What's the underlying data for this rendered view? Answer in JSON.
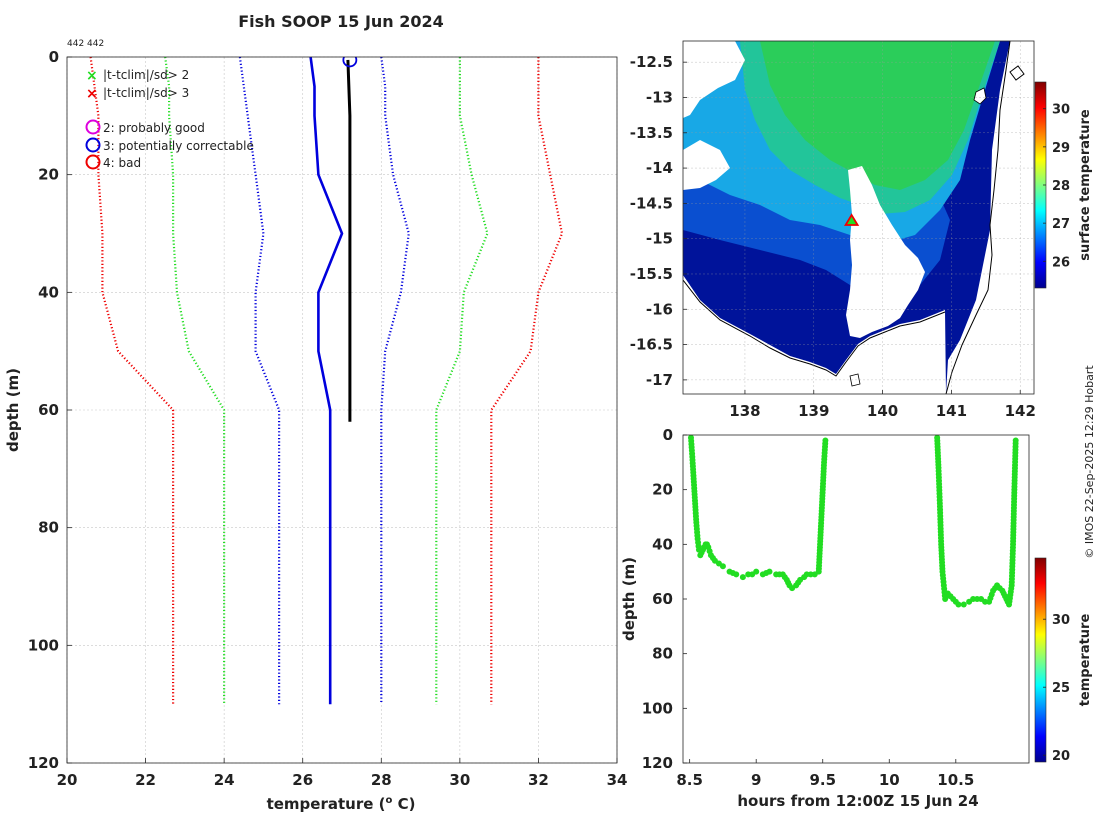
{
  "title": "Fish SOOP 15 Jun 2024",
  "id_label": "442 442",
  "credit": "© IMOS 22-Sep-2025 12:29 Hobart",
  "colors": {
    "green": "#22dd22",
    "red": "#ee0000",
    "blue": "#0000dd",
    "magenta": "#dd00dd",
    "black": "#000000",
    "grid": "#c8c8c8",
    "land": "#ffffff",
    "coast": "#000000"
  },
  "chart_data": [
    {
      "type": "line",
      "name": "profile",
      "xlabel": "temperature (o C)",
      "xlabel_main": "temperature (",
      "xlabel_sup": "o",
      "xlabel_end": " C)",
      "ylabel": "depth (m)",
      "xlim": [
        20,
        34
      ],
      "ylim": [
        0,
        120
      ],
      "xticks": [
        20,
        22,
        24,
        26,
        28,
        30,
        32,
        34
      ],
      "yticks": [
        0,
        20,
        40,
        60,
        80,
        100,
        120
      ],
      "legend": [
        {
          "marker": "x",
          "color": "green",
          "label": "|t-tclim|/sd> 2"
        },
        {
          "marker": "x",
          "color": "red",
          "label": "|t-tclim|/sd> 3"
        },
        {
          "marker": "o",
          "color": "magenta",
          "label": "2: probably good"
        },
        {
          "marker": "o",
          "color": "blue",
          "label": "3: potentially correctable"
        },
        {
          "marker": "o",
          "color": "red",
          "label": "4: bad"
        }
      ],
      "series": [
        {
          "name": "clim",
          "style": "solid",
          "color": "blue",
          "depth": [
            0,
            5,
            10,
            20,
            30,
            40,
            50,
            60,
            110
          ],
          "temp": [
            26.2,
            26.3,
            26.3,
            26.4,
            27.0,
            26.4,
            26.4,
            26.7,
            26.7
          ]
        },
        {
          "name": "clim+1sd",
          "style": "dotted",
          "color": "blue",
          "depth": [
            0,
            5,
            10,
            20,
            30,
            40,
            50,
            60,
            110
          ],
          "temp": [
            28.0,
            28.1,
            28.1,
            28.3,
            28.7,
            28.5,
            28.1,
            28.0,
            28.0
          ]
        },
        {
          "name": "clim-1sd",
          "style": "dotted",
          "color": "blue",
          "depth": [
            0,
            5,
            10,
            20,
            30,
            40,
            50,
            60,
            110
          ],
          "temp": [
            24.4,
            24.5,
            24.6,
            24.8,
            25.0,
            24.8,
            24.8,
            25.4,
            25.4
          ]
        },
        {
          "name": "clim+2sd",
          "style": "dotted",
          "color": "green",
          "depth": [
            0,
            5,
            10,
            20,
            30,
            40,
            50,
            60,
            110
          ],
          "temp": [
            30.0,
            30.0,
            30.0,
            30.3,
            30.7,
            30.1,
            30.0,
            29.4,
            29.4
          ]
        },
        {
          "name": "clim-2sd",
          "style": "dotted",
          "color": "green",
          "depth": [
            0,
            5,
            10,
            20,
            30,
            40,
            50,
            60,
            110
          ],
          "temp": [
            22.5,
            22.6,
            22.6,
            22.7,
            22.7,
            22.8,
            23.1,
            24.0,
            24.0
          ]
        },
        {
          "name": "clim+3sd",
          "style": "dotted",
          "color": "red",
          "depth": [
            0,
            5,
            10,
            20,
            30,
            40,
            50,
            60,
            110
          ],
          "temp": [
            32.0,
            32.0,
            32.0,
            32.3,
            32.6,
            32.0,
            31.8,
            30.8,
            30.8
          ]
        },
        {
          "name": "clim-3sd",
          "style": "dotted",
          "color": "red",
          "depth": [
            0,
            5,
            10,
            20,
            30,
            40,
            50,
            60,
            110
          ],
          "temp": [
            20.6,
            20.7,
            20.8,
            20.8,
            20.9,
            20.9,
            21.3,
            22.7,
            22.7
          ]
        },
        {
          "name": "observed",
          "style": "solid",
          "color": "black",
          "depth": [
            0.5,
            10,
            20,
            30,
            40,
            50,
            62
          ],
          "temp": [
            27.15,
            27.2,
            27.2,
            27.2,
            27.2,
            27.2,
            27.2
          ]
        }
      ],
      "flag_marker": {
        "temp": 27.2,
        "depth": 0.5,
        "color": "blue"
      }
    },
    {
      "type": "heatmap",
      "name": "sst-map",
      "colorbar_label": "surface temperature",
      "xlim": [
        137.1,
        142.2
      ],
      "ylim": [
        -17.2,
        -12.2
      ],
      "xticks": [
        138,
        139,
        140,
        141,
        142
      ],
      "yticks": [
        -12.5,
        -13,
        -13.5,
        -14,
        -14.5,
        -15,
        -15.5,
        -16,
        -16.5,
        -17
      ],
      "clim": [
        25.3,
        30.7
      ],
      "cticks": [
        26,
        27,
        28,
        29,
        30
      ],
      "position_marker": {
        "lon": 139.55,
        "lat": -14.75
      }
    },
    {
      "type": "scatter",
      "name": "depth-time",
      "xlabel": "hours from 12:00Z 15 Jun 24",
      "ylabel": "depth (m)",
      "xlim": [
        8.45,
        11.05
      ],
      "ylim": [
        0,
        120
      ],
      "xticks": [
        8.5,
        9,
        9.5,
        10,
        10.5
      ],
      "yticks": [
        0,
        20,
        40,
        60,
        80,
        100,
        120
      ],
      "colorbar_label": "temperature",
      "clim": [
        19.5,
        34.5
      ],
      "cticks": [
        20,
        25,
        30
      ],
      "color": "green",
      "x": [
        8.51,
        8.52,
        8.53,
        8.54,
        8.55,
        8.56,
        8.57,
        8.58,
        8.61,
        8.62,
        8.63,
        8.64,
        8.66,
        8.69,
        8.72,
        8.75,
        8.8,
        8.85,
        8.9,
        8.94,
        8.97,
        9.0,
        9.05,
        9.1,
        9.15,
        9.2,
        9.23,
        9.25,
        9.27,
        9.3,
        9.33,
        9.36,
        9.38,
        9.41,
        9.44,
        9.47,
        9.48,
        9.49,
        9.5,
        9.51,
        9.52,
        10.36,
        10.37,
        10.38,
        10.39,
        10.4,
        10.41,
        10.42,
        10.44,
        10.48,
        10.52,
        10.56,
        10.6,
        10.63,
        10.66,
        10.69,
        10.72,
        10.75,
        10.78,
        10.81,
        10.85,
        10.88,
        10.9,
        10.92,
        10.93,
        10.94,
        10.95
      ],
      "y": [
        1,
        8,
        16,
        24,
        32,
        38,
        42,
        44,
        41,
        40,
        40,
        41,
        44,
        46,
        47,
        48,
        50,
        51,
        52,
        51,
        51,
        50,
        51,
        50,
        51,
        51,
        53,
        55,
        56,
        55,
        53,
        52,
        51,
        51,
        51,
        50,
        40,
        30,
        20,
        10,
        2,
        1,
        12,
        25,
        40,
        50,
        55,
        60,
        58,
        60,
        62,
        62,
        61,
        60,
        60,
        60,
        61,
        61,
        57,
        55,
        57,
        60,
        62,
        55,
        40,
        20,
        2
      ]
    }
  ]
}
